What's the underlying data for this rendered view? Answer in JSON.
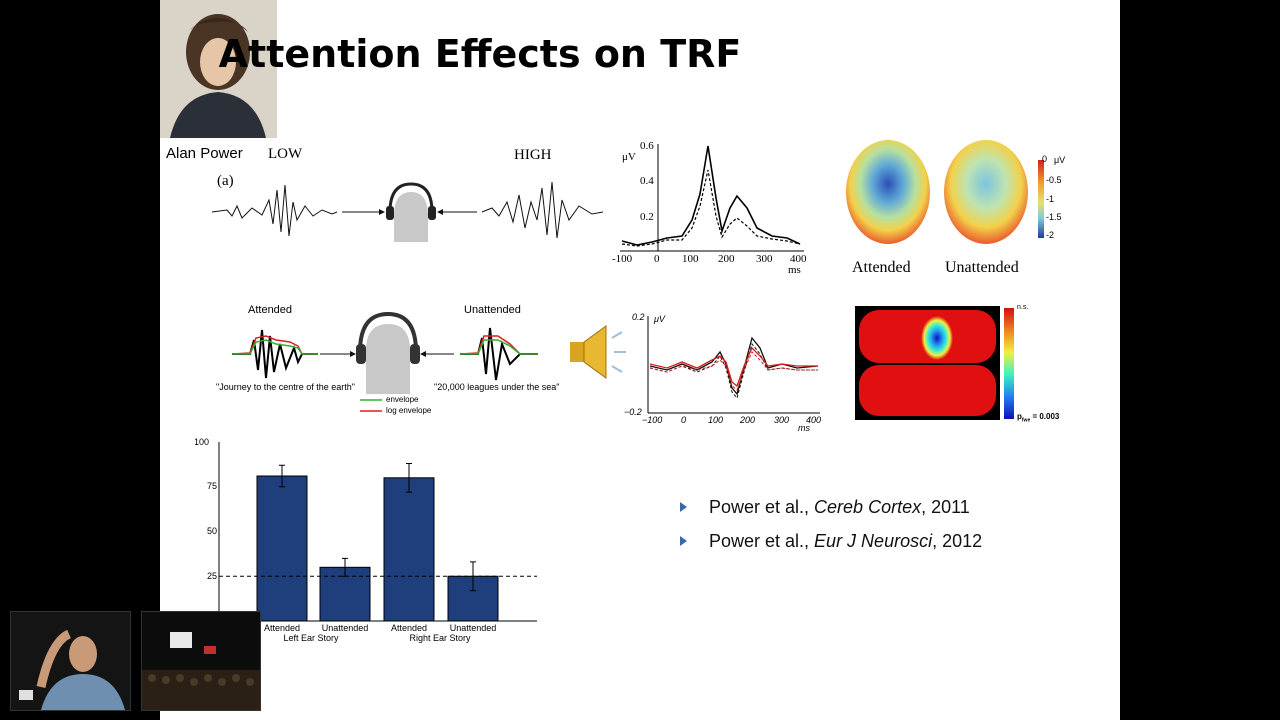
{
  "slide": {
    "title": "Attention Effects on TRF",
    "photo_caption": "Alan Power"
  },
  "figure_a": {
    "panel_label": "(a)",
    "low_label": "LOW",
    "high_label": "HIGH"
  },
  "figure_b": {
    "attended_label": "Attended",
    "unattended_label": "Unattended",
    "left_quote": "\"Journey to the centre of the earth\"",
    "right_quote": "\"20,000 leagues under the sea\"",
    "legend_envelope": "envelope",
    "legend_log_envelope": "log envelope"
  },
  "trf_top": {
    "unit": "μV",
    "y_ticks": [
      "0.6",
      "0.4",
      "0.2"
    ],
    "x_ticks": [
      "-100",
      "0",
      "100",
      "200",
      "300",
      "400"
    ],
    "x_unit": "ms"
  },
  "topomap_top": {
    "attended_label": "Attended",
    "unattended_label": "Unattended",
    "scale_unit": "μV",
    "scale_ticks": [
      "0",
      "-0.5",
      "-1",
      "-1.5",
      "-2"
    ]
  },
  "trf_bottom": {
    "unit": "μV",
    "y_top": "0.2",
    "y_bottom": "−0.2",
    "x_ticks": [
      "−100",
      "0",
      "100",
      "200",
      "300",
      "400"
    ],
    "x_unit": "ms"
  },
  "pmap": {
    "top_label": "n.s.",
    "bottom_label": "p",
    "bottom_sub": "fwe",
    "bottom_value": " = 0.003"
  },
  "bar_chart": {
    "y_ticks": [
      "100",
      "75",
      "50",
      "25"
    ],
    "cat_labels": [
      "Attended",
      "Unattended",
      "Attended",
      "Unattended"
    ],
    "group_labels": [
      "Left Ear Story",
      "Right Ear Story"
    ],
    "bar_color": "#1f3e7c"
  },
  "chart_data": {
    "type": "bar",
    "categories": [
      "Attended",
      "Unattended",
      "Attended",
      "Unattended"
    ],
    "groups": [
      "Left Ear Story",
      "Right Ear Story"
    ],
    "values": [
      81,
      30,
      80,
      25
    ],
    "error": [
      6,
      5,
      8,
      8
    ],
    "chance_line": 25,
    "ylim": [
      0,
      100
    ]
  },
  "references": [
    {
      "authors": "Power et al., ",
      "journal": "Cereb Cortex",
      "year": ", 2011"
    },
    {
      "authors": "Power et al., ",
      "journal": "Eur J Neurosci",
      "year": ", 2012"
    }
  ]
}
